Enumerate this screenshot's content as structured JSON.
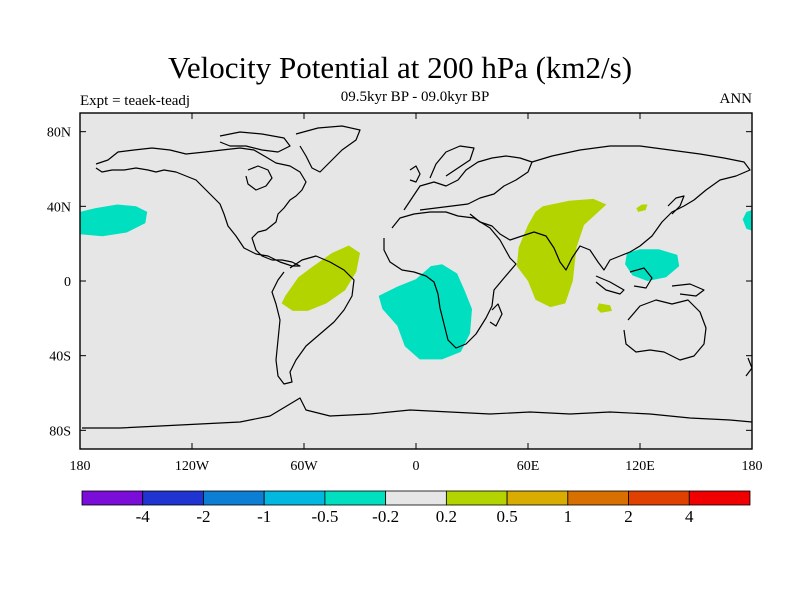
{
  "title": "Velocity Potential at 200 hPa (km2/s)",
  "subtitle": "09.5kyr BP - 09.0kyr BP",
  "left_label": "Expt = teaek-teadj",
  "right_label": "ANN",
  "map": {
    "projection": "cylindrical equidistant",
    "lon_range": [
      -180,
      180
    ],
    "lat_range": [
      -90,
      90
    ],
    "ocean_color": "#e6e6e6",
    "coast_color": "#000000",
    "x_ticks": [
      {
        "lon": -180,
        "label": "180"
      },
      {
        "lon": -120,
        "label": "120W"
      },
      {
        "lon": -60,
        "label": "60W"
      },
      {
        "lon": 0,
        "label": "0"
      },
      {
        "lon": 60,
        "label": "60E"
      },
      {
        "lon": 120,
        "label": "120E"
      },
      {
        "lon": 180,
        "label": "180"
      }
    ],
    "y_ticks": [
      {
        "lat": 80,
        "label": "80N"
      },
      {
        "lat": 40,
        "label": "40N"
      },
      {
        "lat": 0,
        "label": "0"
      },
      {
        "lat": -40,
        "label": "40S"
      },
      {
        "lat": -80,
        "label": "80S"
      }
    ],
    "regions": [
      {
        "name": "cyan-north-pacific",
        "color": "#00e0c0",
        "points": [
          [
            -180,
            37
          ],
          [
            -172,
            39
          ],
          [
            -160,
            41
          ],
          [
            -150,
            40
          ],
          [
            -144,
            37
          ],
          [
            -145,
            31
          ],
          [
            -155,
            26
          ],
          [
            -168,
            24
          ],
          [
            -180,
            25
          ]
        ]
      },
      {
        "name": "cyan-dateline-east",
        "color": "#00e0c0",
        "points": [
          [
            180,
            38
          ],
          [
            177,
            37
          ],
          [
            175,
            33
          ],
          [
            177,
            28
          ],
          [
            180,
            27
          ]
        ]
      },
      {
        "name": "green-south-america",
        "color": "#b4d400",
        "points": [
          [
            -70,
            -8
          ],
          [
            -63,
            2
          ],
          [
            -55,
            8
          ],
          [
            -45,
            15
          ],
          [
            -36,
            19
          ],
          [
            -30,
            15
          ],
          [
            -32,
            5
          ],
          [
            -38,
            -5
          ],
          [
            -48,
            -12
          ],
          [
            -58,
            -16
          ],
          [
            -66,
            -16
          ],
          [
            -72,
            -12
          ]
        ]
      },
      {
        "name": "cyan-south-atlantic-africa",
        "color": "#00e0c0",
        "points": [
          [
            -20,
            -8
          ],
          [
            -10,
            -3
          ],
          [
            0,
            1
          ],
          [
            8,
            8
          ],
          [
            14,
            9
          ],
          [
            22,
            4
          ],
          [
            26,
            -5
          ],
          [
            30,
            -15
          ],
          [
            29,
            -28
          ],
          [
            24,
            -38
          ],
          [
            14,
            -42
          ],
          [
            2,
            -42
          ],
          [
            -6,
            -35
          ],
          [
            -10,
            -24
          ],
          [
            -18,
            -15
          ]
        ]
      },
      {
        "name": "green-south-asia",
        "color": "#b4d400",
        "points": [
          [
            68,
            40
          ],
          [
            82,
            43
          ],
          [
            95,
            44
          ],
          [
            102,
            41
          ],
          [
            90,
            30
          ],
          [
            86,
            18
          ],
          [
            84,
            0
          ],
          [
            80,
            -12
          ],
          [
            72,
            -14
          ],
          [
            64,
            -10
          ],
          [
            60,
            0
          ],
          [
            54,
            8
          ],
          [
            55,
            18
          ],
          [
            60,
            30
          ],
          [
            64,
            37
          ]
        ]
      },
      {
        "name": "cyan-maritime-continent",
        "color": "#00e0c0",
        "points": [
          [
            113,
            15
          ],
          [
            120,
            17
          ],
          [
            130,
            17
          ],
          [
            140,
            14
          ],
          [
            141,
            8
          ],
          [
            134,
            2
          ],
          [
            124,
            0
          ],
          [
            116,
            3
          ],
          [
            112,
            9
          ]
        ]
      },
      {
        "name": "green-indian-ocean-blob",
        "color": "#b4d400",
        "points": [
          [
            98,
            -12
          ],
          [
            104,
            -13
          ],
          [
            105,
            -16
          ],
          [
            99,
            -17
          ],
          [
            97,
            -15
          ]
        ]
      },
      {
        "name": "green-east-asia-blob",
        "color": "#b4d400",
        "points": [
          [
            118,
            39
          ],
          [
            121,
            41
          ],
          [
            124,
            41
          ],
          [
            123,
            38
          ],
          [
            119,
            37
          ]
        ]
      }
    ]
  },
  "colorbar": {
    "colors": [
      "#7a0ed8",
      "#2034d2",
      "#0c7ed4",
      "#00b8e0",
      "#00e0c0",
      "#e6e6e6",
      "#b4d400",
      "#d8ac00",
      "#d87000",
      "#e04000",
      "#f00000"
    ],
    "labels": [
      "-4",
      "-2",
      "-1",
      "-0.5",
      "-0.2",
      "0.2",
      "0.5",
      "1",
      "2",
      "4"
    ]
  }
}
